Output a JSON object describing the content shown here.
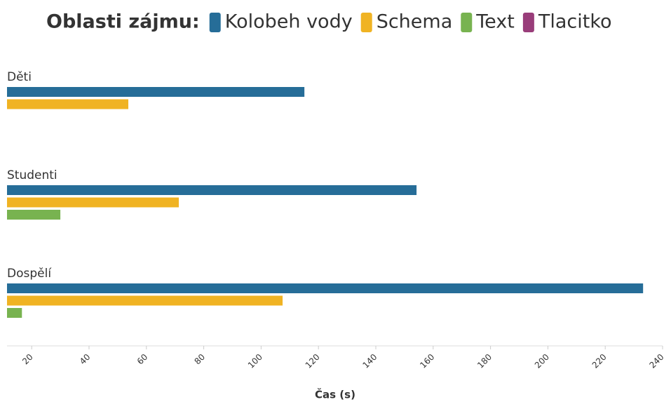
{
  "chart_data": {
    "type": "hbar",
    "legend_title": "Oblasti zájmu:",
    "legend": "top",
    "categories": [
      "Děti",
      "Studenti",
      "Dospělí"
    ],
    "series": [
      {
        "name": "Kolobeh vody",
        "color": "#266d98",
        "values": [
          115.1,
          154.2,
          233.2
        ]
      },
      {
        "name": "Schema",
        "color": "#f0b323",
        "values": [
          53.7,
          71.3,
          107.5
        ]
      },
      {
        "name": "Text",
        "color": "#78b350",
        "values": [
          null,
          30,
          16.6
        ]
      },
      {
        "name": "Tlacitko",
        "color": "#993d7a",
        "values": [
          null,
          null,
          null
        ]
      }
    ],
    "xlabel": "Čas (s)",
    "xlim": [
      11.4,
      240
    ],
    "xticks": [
      20,
      40,
      60,
      80,
      100,
      120,
      140,
      160,
      180,
      200,
      220,
      240
    ],
    "grid": false
  }
}
